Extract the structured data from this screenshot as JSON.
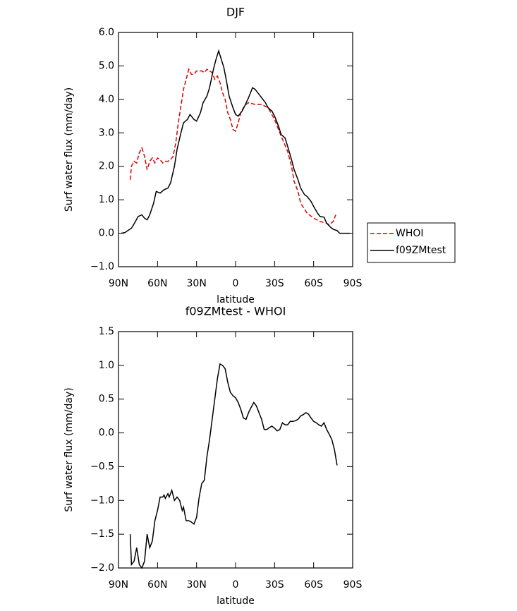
{
  "chart_data": [
    {
      "type": "line",
      "title": "DJF",
      "x_label": "latitude",
      "y_label": "Surf water flux (mm/day)",
      "xlim": [
        90,
        -90
      ],
      "xticks": [
        {
          "value": 90,
          "label": "90N"
        },
        {
          "value": 60,
          "label": "60N"
        },
        {
          "value": 30,
          "label": "30N"
        },
        0,
        {
          "value": -30,
          "label": "30S"
        },
        {
          "value": -60,
          "label": "60S"
        },
        {
          "value": -90,
          "label": "90S"
        }
      ],
      "ylim": [
        -1,
        6
      ],
      "yticks": [
        {
          "value": -1,
          "label": "−1.0"
        },
        {
          "value": 0,
          "label": "0.0"
        },
        {
          "value": 1,
          "label": "1.0"
        },
        {
          "value": 2,
          "label": "2.0"
        },
        {
          "value": 3,
          "label": "3.0"
        },
        {
          "value": 4,
          "label": "4.0"
        },
        {
          "value": 5,
          "label": "5.0"
        },
        {
          "value": 6,
          "label": "6.0"
        }
      ],
      "legend": "right",
      "series": [
        {
          "name": "WHOI",
          "color": "#e00000",
          "line_style": "dashed",
          "x": [
            81,
            80,
            78,
            76,
            74,
            72,
            70,
            68,
            66,
            64,
            62,
            60,
            58,
            56,
            54,
            52,
            50,
            48,
            46,
            44,
            42,
            40,
            38,
            36,
            34,
            32,
            30,
            28,
            26,
            24,
            22,
            20,
            18,
            16,
            14,
            12,
            10,
            8,
            6,
            4,
            2,
            0,
            -2,
            -4,
            -6,
            -8,
            -10,
            -15,
            -20,
            -25,
            -30,
            -35,
            -40,
            -43,
            -45,
            -48,
            -50,
            -55,
            -60,
            -65,
            -70,
            -72,
            -75,
            -77
          ],
          "values": [
            1.6,
            2.0,
            2.15,
            2.1,
            2.4,
            2.55,
            2.3,
            1.9,
            2.15,
            2.25,
            2.1,
            2.25,
            2.2,
            2.1,
            2.15,
            2.15,
            2.2,
            2.3,
            2.7,
            3.3,
            3.8,
            4.3,
            4.6,
            4.9,
            4.75,
            4.75,
            4.85,
            4.85,
            4.85,
            4.8,
            4.9,
            4.85,
            4.8,
            4.6,
            4.7,
            4.5,
            4.2,
            4.0,
            3.6,
            3.4,
            3.1,
            3.05,
            3.3,
            3.6,
            3.75,
            3.85,
            3.9,
            3.85,
            3.85,
            3.75,
            3.4,
            2.9,
            2.45,
            2.0,
            1.55,
            1.25,
            0.9,
            0.6,
            0.45,
            0.35,
            0.3,
            0.25,
            0.35,
            0.55
          ]
        },
        {
          "name": "f09ZMtest",
          "color": "#000000",
          "line_style": "solid",
          "x": [
            88,
            85,
            82,
            80,
            77,
            75,
            72,
            70,
            68,
            66,
            63,
            61,
            58,
            55,
            52,
            50,
            47,
            45,
            42,
            40,
            37,
            35,
            32,
            30,
            27,
            25,
            22,
            20,
            17,
            15,
            13,
            11,
            9,
            7,
            5,
            2,
            0,
            -2,
            -5,
            -7,
            -10,
            -13,
            -15,
            -18,
            -20,
            -23,
            -25,
            -28,
            -30,
            -33,
            -35,
            -38,
            -40,
            -43,
            -45,
            -48,
            -50,
            -53,
            -55,
            -58,
            -60,
            -63,
            -65,
            -68,
            -70,
            -73,
            -75,
            -78,
            -80,
            -85,
            -88
          ],
          "values": [
            0.0,
            0.02,
            0.1,
            0.15,
            0.35,
            0.5,
            0.55,
            0.45,
            0.4,
            0.55,
            0.9,
            1.25,
            1.2,
            1.3,
            1.35,
            1.5,
            2.0,
            2.5,
            3.0,
            3.3,
            3.4,
            3.55,
            3.4,
            3.35,
            3.6,
            3.9,
            4.1,
            4.35,
            4.9,
            5.2,
            5.45,
            5.2,
            4.95,
            4.55,
            4.1,
            3.75,
            3.55,
            3.5,
            3.65,
            3.8,
            4.05,
            4.35,
            4.3,
            4.15,
            4.05,
            3.9,
            3.75,
            3.65,
            3.5,
            3.2,
            2.95,
            2.85,
            2.6,
            2.2,
            1.9,
            1.6,
            1.35,
            1.15,
            1.1,
            0.95,
            0.8,
            0.6,
            0.5,
            0.48,
            0.3,
            0.18,
            0.12,
            0.08,
            0.0,
            0.0,
            0.0
          ]
        }
      ]
    },
    {
      "type": "line",
      "title": "f09ZMtest - WHOI",
      "x_label": "latitude",
      "y_label": "Surf water flux (mm/day)",
      "xlim": [
        90,
        -90
      ],
      "xticks": [
        {
          "value": 90,
          "label": "90N"
        },
        {
          "value": 60,
          "label": "60N"
        },
        {
          "value": 30,
          "label": "30N"
        },
        0,
        {
          "value": -30,
          "label": "30S"
        },
        {
          "value": -60,
          "label": "60S"
        },
        {
          "value": -90,
          "label": "90S"
        }
      ],
      "ylim": [
        -2,
        1.5
      ],
      "yticks": [
        {
          "value": -2,
          "label": "−2.0"
        },
        {
          "value": -1.5,
          "label": "−1.5"
        },
        {
          "value": -1,
          "label": "−1.0"
        },
        {
          "value": -0.5,
          "label": "−0.5"
        },
        {
          "value": 0,
          "label": "0.0"
        },
        0.5,
        {
          "value": 1,
          "label": "1.0"
        },
        1.5
      ],
      "series": [
        {
          "color": "#000000",
          "line_style": "solid",
          "x": [
            81,
            80,
            78,
            76,
            74,
            72,
            70,
            68,
            67,
            66,
            64,
            62,
            60,
            58,
            56,
            55,
            54,
            52,
            51,
            49,
            47,
            45,
            43,
            41,
            40,
            38,
            36,
            34,
            32,
            30,
            28,
            26,
            24,
            22,
            20,
            18,
            16,
            14,
            12,
            10,
            8,
            6,
            4,
            2,
            0,
            -2,
            -4,
            -6,
            -8,
            -10,
            -12,
            -14,
            -16,
            -18,
            -20,
            -22,
            -24,
            -26,
            -28,
            -30,
            -32,
            -34,
            -36,
            -38,
            -40,
            -42,
            -44,
            -46,
            -48,
            -50,
            -52,
            -54,
            -56,
            -58,
            -60,
            -62,
            -64,
            -66,
            -68,
            -70,
            -72,
            -74,
            -76,
            -78
          ],
          "values": [
            -1.5,
            -1.95,
            -1.9,
            -1.7,
            -1.95,
            -2.0,
            -1.9,
            -1.5,
            -1.6,
            -1.7,
            -1.6,
            -1.3,
            -1.15,
            -0.95,
            -0.95,
            -0.92,
            -0.97,
            -0.9,
            -0.95,
            -0.85,
            -1.0,
            -0.95,
            -1.0,
            -1.15,
            -1.1,
            -1.3,
            -1.3,
            -1.32,
            -1.35,
            -1.25,
            -0.95,
            -0.75,
            -0.7,
            -0.35,
            -0.1,
            0.2,
            0.5,
            0.8,
            1.02,
            1.0,
            0.95,
            0.75,
            0.6,
            0.55,
            0.52,
            0.45,
            0.35,
            0.22,
            0.2,
            0.3,
            0.38,
            0.45,
            0.4,
            0.3,
            0.2,
            0.05,
            0.05,
            0.08,
            0.1,
            0.07,
            0.03,
            0.05,
            0.15,
            0.12,
            0.12,
            0.17,
            0.17,
            0.18,
            0.2,
            0.25,
            0.27,
            0.3,
            0.28,
            0.22,
            0.17,
            0.15,
            0.12,
            0.1,
            0.15,
            0.05,
            -0.02,
            -0.1,
            -0.25,
            -0.48
          ]
        }
      ]
    }
  ]
}
